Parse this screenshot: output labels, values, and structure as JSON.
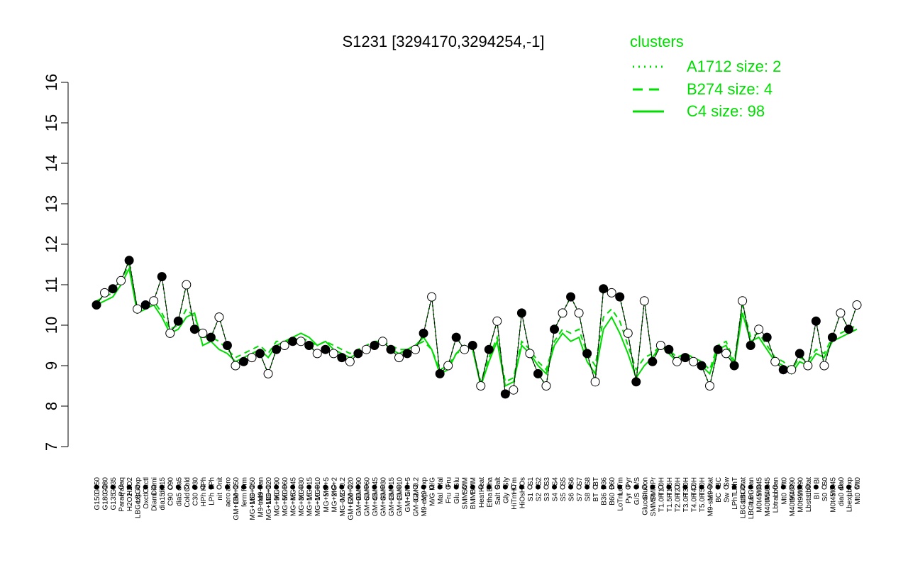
{
  "chart_data": {
    "type": "line",
    "title": "S1231 [3294170,3294254,-1]",
    "xlabel": "",
    "ylabel": "",
    "ylim": [
      7,
      16
    ],
    "yticks": [
      7,
      8,
      9,
      10,
      11,
      12,
      13,
      14,
      15,
      16
    ],
    "grid": false,
    "legend_position": "top-right",
    "legend": {
      "title": "clusters",
      "entries": [
        {
          "label": "A1712 size: 2",
          "style": "dotted"
        },
        {
          "label": "B274 size: 4",
          "style": "dashed"
        },
        {
          "label": "C4 size: 98",
          "style": "solid"
        }
      ]
    },
    "x_labels": [
      "G150",
      "G180",
      "G135",
      "Paraq",
      "H2O2",
      "LBGexp",
      "Oxctl",
      "Diami",
      "dia15",
      "C90",
      "dia5",
      "Cold",
      "C30",
      "HPh",
      "LPh",
      "nit",
      "aero",
      "GM+150",
      "ferm",
      "MG+150",
      "M9-tran",
      "MG+120",
      "MG+90",
      "MG+60",
      "MG+45",
      "MG+30",
      "MG+15",
      "MG+10",
      "MG+5",
      "MG+2",
      "MG-0.2",
      "GM+120",
      "GM+90",
      "GM+60",
      "GM+45",
      "GM+30",
      "GM+15",
      "GM+10",
      "GM+5",
      "GM-0.2",
      "M9-exp",
      "M/G",
      "Mal",
      "Fru",
      "Glu",
      "SMM",
      "BMM",
      "Heat",
      "Etha",
      "Salt",
      "Gly",
      "HiTm",
      "HiOs",
      "S1",
      "S2",
      "S3",
      "S4",
      "S5",
      "S6",
      "S7",
      "S8",
      "BT",
      "B36",
      "B60",
      "LoTm",
      "Pyr",
      "G/S",
      "Glucon",
      "SMMPr",
      "T1.0H",
      "T1.5H",
      "T2.0H",
      "T3.0H",
      "T4.0H",
      "T5.0H",
      "M9-stat",
      "BC",
      "Sw",
      "LPhT",
      "LBGstat",
      "LBGtran",
      "M0t45",
      "M40t45",
      "Lbtran",
      "Mt0",
      "M40t90",
      "M0t90",
      "Lbstat",
      "BI",
      "S0",
      "M0t45",
      "dia0",
      "Lbexp",
      "Mt0"
    ],
    "series": [
      {
        "style": "solid",
        "values": [
          10.5,
          10.6,
          10.7,
          11.0,
          11.4,
          10.3,
          10.4,
          10.5,
          10.2,
          9.8,
          9.9,
          10.2,
          10.3,
          9.5,
          9.6,
          9.4,
          9.3,
          9.1,
          9.2,
          9.3,
          9.4,
          9.2,
          9.5,
          9.6,
          9.7,
          9.8,
          9.7,
          9.5,
          9.6,
          9.4,
          9.3,
          9.2,
          9.3,
          9.4,
          9.5,
          9.6,
          9.4,
          9.3,
          9.4,
          9.5,
          9.7,
          9.4,
          8.8,
          8.9,
          9.3,
          9.5,
          9.4,
          8.5,
          9.1,
          9.6,
          8.5,
          8.6,
          9.5,
          9.3,
          9.0,
          8.8,
          9.5,
          9.8,
          9.6,
          9.7,
          9.1,
          8.8,
          9.9,
          10.2,
          9.8,
          9.3,
          8.7,
          9.0,
          9.2,
          9.5,
          9.3,
          9.1,
          9.2,
          9.1,
          9.0,
          8.8,
          9.4,
          9.5,
          9.0,
          10.3,
          9.6,
          9.7,
          9.4,
          9.1,
          9.0,
          8.8,
          9.1,
          9.0,
          9.3,
          9.2,
          9.6,
          9.7,
          9.8,
          9.9
        ]
      },
      {
        "style": "dashed",
        "values": [
          10.6,
          10.7,
          10.8,
          11.1,
          11.5,
          10.4,
          10.5,
          10.6,
          10.3,
          9.9,
          10.0,
          10.4,
          10.2,
          9.7,
          9.7,
          9.6,
          9.4,
          9.2,
          9.3,
          9.4,
          9.5,
          9.3,
          9.6,
          9.6,
          9.6,
          9.7,
          9.6,
          9.5,
          9.6,
          9.5,
          9.4,
          9.3,
          9.4,
          9.5,
          9.6,
          9.6,
          9.5,
          9.4,
          9.4,
          9.5,
          9.6,
          9.4,
          8.9,
          9.0,
          9.3,
          9.4,
          9.4,
          8.6,
          9.2,
          9.7,
          8.6,
          8.7,
          9.6,
          9.4,
          9.1,
          8.9,
          9.6,
          9.9,
          9.8,
          9.9,
          9.3,
          9.0,
          10.2,
          10.4,
          10.1,
          9.5,
          8.9,
          9.2,
          9.3,
          9.5,
          9.4,
          9.2,
          9.3,
          9.2,
          9.1,
          8.9,
          9.5,
          9.6,
          9.1,
          10.5,
          9.7,
          9.8,
          9.5,
          9.2,
          9.1,
          8.9,
          9.2,
          9.1,
          9.4,
          9.3,
          9.7,
          9.8,
          9.9,
          10.0
        ]
      },
      {
        "style": "dotted",
        "values": [
          10.5,
          10.8,
          10.9,
          11.1,
          11.6,
          10.4,
          10.5,
          10.6,
          11.2,
          9.8,
          10.1,
          11.0,
          9.9,
          9.8,
          9.7,
          10.2,
          9.5,
          9.0,
          9.1,
          9.2,
          9.3,
          8.8,
          9.4,
          9.5,
          9.6,
          9.6,
          9.5,
          9.3,
          9.4,
          9.3,
          9.2,
          9.1,
          9.3,
          9.4,
          9.5,
          9.6,
          9.4,
          9.2,
          9.3,
          9.4,
          9.8,
          10.7,
          8.8,
          9.0,
          9.7,
          9.4,
          9.5,
          8.5,
          9.4,
          10.1,
          8.3,
          8.4,
          10.3,
          9.3,
          8.8,
          8.5,
          9.9,
          10.3,
          10.7,
          10.3,
          9.3,
          8.6,
          10.9,
          10.8,
          10.7,
          9.8,
          8.6,
          10.6,
          9.1,
          9.5,
          9.4,
          9.1,
          9.2,
          9.1,
          9.0,
          8.5,
          9.4,
          9.3,
          9.0,
          10.6,
          9.5,
          9.9,
          9.7,
          9.1,
          8.9,
          8.9,
          9.3,
          9.0,
          10.1,
          9.0,
          9.7,
          10.3,
          9.9,
          10.5
        ]
      }
    ],
    "point_fill": [
      "#000000",
      "#ffffff"
    ]
  }
}
